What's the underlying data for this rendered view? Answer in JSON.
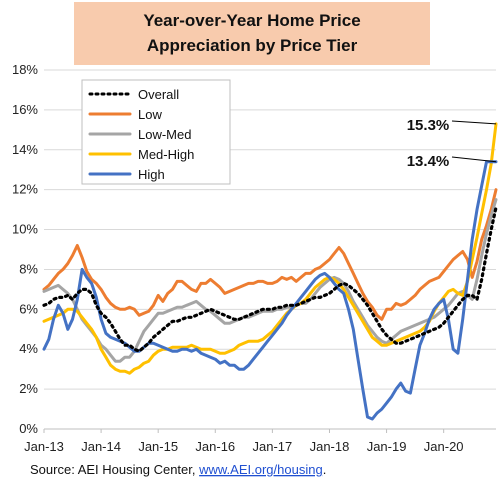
{
  "chart_data": {
    "type": "line",
    "title_lines": [
      "Year-over-Year Home Price",
      "Appreciation by Price Tier"
    ],
    "colors": {
      "title_bg": "#f8cbad",
      "Overall": "#000000",
      "Low": "#ed7d31",
      "Low-Med": "#a5a5a5",
      "Med-High": "#ffc000",
      "High": "#4472c4"
    },
    "ylim": [
      0,
      18
    ],
    "yticks": [
      "0%",
      "2%",
      "4%",
      "6%",
      "8%",
      "10%",
      "12%",
      "14%",
      "16%",
      "18%"
    ],
    "xticks": [
      "Jan-13",
      "Jan-14",
      "Jan-15",
      "Jan-16",
      "Jan-17",
      "Jan-18",
      "Jan-19",
      "Jan-20"
    ],
    "x_start": "2013-01",
    "x_end": "2020-12",
    "grid": "horizontal",
    "legend_position": "top-left",
    "series": [
      {
        "name": "Overall",
        "values": [
          6.2,
          6.3,
          6.5,
          6.6,
          6.6,
          6.7,
          6.5,
          6.8,
          7.0,
          7.0,
          6.8,
          6.2,
          5.8,
          5.6,
          5.3,
          4.9,
          4.5,
          4.2,
          4.2,
          4.0,
          3.9,
          4.1,
          4.3,
          4.6,
          4.8,
          5.0,
          5.2,
          5.4,
          5.4,
          5.5,
          5.6,
          5.6,
          5.7,
          5.8,
          5.9,
          6.0,
          5.9,
          5.8,
          5.7,
          5.6,
          5.5,
          5.5,
          5.6,
          5.7,
          5.8,
          5.9,
          6.0,
          6.0,
          6.0,
          6.1,
          6.1,
          6.2,
          6.2,
          6.2,
          6.3,
          6.4,
          6.5,
          6.6,
          6.6,
          6.7,
          6.8,
          7.0,
          7.2,
          7.3,
          7.2,
          7.0,
          6.8,
          6.5,
          6.2,
          5.8,
          5.4,
          5.0,
          4.7,
          4.5,
          4.3,
          4.3,
          4.4,
          4.5,
          4.6,
          4.7,
          4.8,
          4.9,
          5.0,
          5.1,
          5.3,
          5.6,
          5.9,
          6.2,
          6.5,
          6.7,
          6.7,
          6.5,
          7.5,
          8.8,
          10.0,
          11.1
        ]
      },
      {
        "name": "Low",
        "values": [
          7.0,
          7.2,
          7.5,
          7.8,
          8.0,
          8.3,
          8.7,
          9.2,
          8.6,
          7.9,
          7.5,
          7.3,
          7.0,
          6.6,
          6.3,
          6.1,
          6.0,
          6.0,
          6.1,
          6.0,
          5.7,
          5.8,
          5.9,
          6.2,
          6.7,
          6.4,
          6.8,
          7.0,
          7.4,
          7.4,
          7.2,
          7.0,
          6.9,
          7.3,
          7.3,
          7.5,
          7.3,
          7.1,
          6.8,
          6.9,
          7.0,
          7.1,
          7.2,
          7.3,
          7.3,
          7.4,
          7.4,
          7.3,
          7.3,
          7.4,
          7.6,
          7.5,
          7.6,
          7.4,
          7.6,
          7.8,
          7.8,
          8.0,
          8.1,
          8.3,
          8.5,
          8.8,
          9.1,
          8.8,
          8.3,
          7.8,
          7.3,
          6.8,
          6.4,
          6.1,
          5.7,
          5.5,
          6.0,
          6.0,
          6.3,
          6.2,
          6.3,
          6.5,
          6.7,
          7.0,
          7.2,
          7.4,
          7.5,
          7.6,
          7.9,
          8.2,
          8.5,
          8.7,
          8.9,
          8.5,
          7.6,
          8.4,
          9.5,
          10.2,
          11.0,
          12.0
        ]
      },
      {
        "name": "Low-Med",
        "values": [
          6.9,
          7.0,
          7.1,
          7.2,
          7.0,
          6.8,
          6.5,
          6.0,
          5.5,
          5.2,
          4.9,
          4.6,
          4.2,
          4.0,
          3.7,
          3.4,
          3.4,
          3.6,
          3.6,
          3.9,
          4.4,
          4.9,
          5.2,
          5.5,
          5.8,
          5.8,
          5.9,
          6.0,
          6.1,
          6.1,
          6.2,
          6.3,
          6.4,
          6.2,
          6.0,
          5.9,
          5.7,
          5.5,
          5.3,
          5.3,
          5.4,
          5.5,
          5.6,
          5.6,
          5.7,
          5.8,
          5.9,
          5.9,
          5.9,
          6.0,
          6.0,
          6.1,
          6.1,
          6.2,
          6.3,
          6.3,
          6.5,
          6.8,
          7.1,
          7.3,
          7.5,
          7.6,
          7.5,
          7.3,
          6.9,
          6.4,
          6.0,
          5.6,
          5.2,
          4.9,
          4.6,
          4.4,
          4.3,
          4.5,
          4.7,
          4.9,
          5.0,
          5.1,
          5.2,
          5.3,
          5.4,
          5.5,
          5.6,
          5.8,
          6.0,
          6.2,
          6.5,
          6.8,
          6.9,
          6.7,
          6.5,
          7.5,
          8.7,
          9.8,
          10.7,
          11.5
        ]
      },
      {
        "name": "Med-High",
        "values": [
          5.4,
          5.5,
          5.6,
          5.7,
          5.8,
          6.0,
          6.0,
          5.9,
          5.6,
          5.3,
          5.0,
          4.6,
          4.0,
          3.6,
          3.2,
          3.0,
          2.9,
          2.9,
          2.8,
          3.0,
          3.1,
          3.3,
          3.4,
          3.7,
          3.9,
          4.0,
          4.0,
          4.1,
          4.1,
          4.1,
          4.1,
          4.2,
          4.1,
          4.0,
          4.0,
          4.0,
          3.9,
          3.8,
          3.8,
          3.9,
          4.0,
          4.2,
          4.3,
          4.4,
          4.4,
          4.4,
          4.5,
          4.7,
          4.9,
          5.2,
          5.5,
          5.8,
          6.0,
          6.2,
          6.3,
          6.5,
          6.8,
          7.1,
          7.3,
          7.5,
          7.6,
          7.5,
          7.3,
          7.0,
          6.6,
          6.2,
          5.8,
          5.4,
          5.0,
          4.6,
          4.4,
          4.2,
          4.2,
          4.3,
          4.4,
          4.5,
          4.6,
          4.7,
          4.8,
          4.9,
          5.1,
          5.4,
          5.9,
          6.3,
          6.6,
          6.9,
          7.0,
          6.8,
          6.7,
          7.4,
          8.5,
          9.6,
          10.8,
          12.0,
          13.3,
          15.3
        ]
      },
      {
        "name": "High",
        "values": [
          4.0,
          4.5,
          5.5,
          6.2,
          5.8,
          5.0,
          5.5,
          6.5,
          8.0,
          7.6,
          7.3,
          6.6,
          5.5,
          4.8,
          4.6,
          4.5,
          4.4,
          4.3,
          4.1,
          3.9,
          3.9,
          4.1,
          4.3,
          4.3,
          4.2,
          4.1,
          4.0,
          3.9,
          3.9,
          4.0,
          4.0,
          3.9,
          4.0,
          3.8,
          3.7,
          3.6,
          3.5,
          3.3,
          3.4,
          3.2,
          3.2,
          3.0,
          3.0,
          3.2,
          3.5,
          3.8,
          4.1,
          4.4,
          4.7,
          5.0,
          5.3,
          5.7,
          6.0,
          6.3,
          6.6,
          6.9,
          7.2,
          7.5,
          7.7,
          7.8,
          7.6,
          7.3,
          7.0,
          6.8,
          6.0,
          5.0,
          3.5,
          2.0,
          0.6,
          0.5,
          0.8,
          1.0,
          1.3,
          1.6,
          2.0,
          2.3,
          1.9,
          1.8,
          3.0,
          4.2,
          4.8,
          5.5,
          6.0,
          6.3,
          6.5,
          5.5,
          4.0,
          3.8,
          5.5,
          7.5,
          9.5,
          11.0,
          12.2,
          13.4,
          13.4,
          13.4
        ]
      }
    ],
    "annotations": [
      {
        "text": "15.3%",
        "series": "Med-High"
      },
      {
        "text": "13.4%",
        "series": "High"
      }
    ],
    "source_prefix": "Source: AEI Housing Center, ",
    "source_link": "www.AEI.org/housing",
    "source_suffix": "."
  }
}
